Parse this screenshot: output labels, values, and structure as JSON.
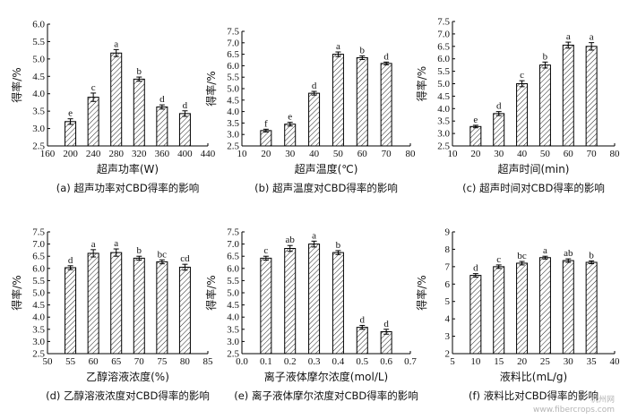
{
  "chart_data": [
    {
      "type": "bar",
      "panel_label": "(a) 超声功率对CBD得率的影响",
      "xlabel": "超声功率(W)",
      "ylabel": "得率/%",
      "x": [
        200,
        240,
        280,
        320,
        360,
        400
      ],
      "values": [
        3.2,
        3.9,
        5.17,
        4.42,
        3.62,
        3.43
      ],
      "errors": [
        0.08,
        0.12,
        0.1,
        0.06,
        0.06,
        0.08
      ],
      "letters": [
        "e",
        "c",
        "a",
        "b",
        "d",
        "d"
      ],
      "xlim": [
        160,
        440
      ],
      "ylim": [
        2.5,
        6.0
      ],
      "xticks": [
        160,
        200,
        240,
        280,
        320,
        360,
        400,
        440
      ],
      "yticks": [
        2.5,
        3.0,
        3.5,
        4.0,
        4.5,
        5.0,
        5.5,
        6.0
      ],
      "xtick_labels": [
        "160",
        "200",
        "240",
        "280",
        "320",
        "360",
        "400",
        "440"
      ],
      "ytick_labels": [
        "2.5",
        "3.0",
        "3.5",
        "4.0",
        "4.5",
        "5.0",
        "5.5",
        "6.0"
      ],
      "bar_width": 20
    },
    {
      "type": "bar",
      "panel_label": "(b) 超声温度对CBD得率的影响",
      "xlabel": "超声温度(℃)",
      "ylabel": "得率/%",
      "x": [
        20,
        30,
        40,
        50,
        60,
        70
      ],
      "values": [
        3.17,
        3.45,
        4.8,
        6.5,
        6.35,
        6.1
      ],
      "errors": [
        0.06,
        0.08,
        0.08,
        0.1,
        0.08,
        0.06
      ],
      "letters": [
        "f",
        "e",
        "d",
        "a",
        "b",
        "d"
      ],
      "xlim": [
        10,
        80
      ],
      "ylim": [
        2.5,
        7.5
      ],
      "xticks": [
        10,
        20,
        30,
        40,
        50,
        60,
        70,
        80
      ],
      "yticks": [
        2.5,
        3.0,
        3.5,
        4.0,
        4.5,
        5.0,
        5.5,
        6.0,
        6.5,
        7.0,
        7.5
      ],
      "xtick_labels": [
        "10",
        "20",
        "30",
        "40",
        "50",
        "60",
        "70",
        "80"
      ],
      "ytick_labels": [
        "2.5",
        "3.0",
        "3.5",
        "4.0",
        "4.5",
        "5.0",
        "5.5",
        "6.0",
        "6.5",
        "7.0",
        "7.5"
      ],
      "bar_width": 5
    },
    {
      "type": "bar",
      "panel_label": "(c) 超声时间对CBD得率的影响",
      "xlabel": "超声时间(min)",
      "ylabel": "得率/%",
      "x": [
        20,
        30,
        40,
        50,
        60,
        70
      ],
      "values": [
        3.28,
        3.8,
        5.0,
        5.75,
        6.55,
        6.5
      ],
      "errors": [
        0.05,
        0.08,
        0.12,
        0.12,
        0.12,
        0.15
      ],
      "letters": [
        "e",
        "d",
        "c",
        "b",
        "a",
        "a"
      ],
      "xlim": [
        10,
        80
      ],
      "ylim": [
        2.5,
        7.5
      ],
      "xticks": [
        10,
        20,
        30,
        40,
        50,
        60,
        70,
        80
      ],
      "yticks": [
        2.5,
        3.0,
        3.5,
        4.0,
        4.5,
        5.0,
        5.5,
        6.0,
        6.5,
        7.0,
        7.5
      ],
      "xtick_labels": [
        "10",
        "20",
        "30",
        "40",
        "50",
        "60",
        "70",
        "80"
      ],
      "ytick_labels": [
        "2.5",
        "3.0",
        "3.5",
        "4.0",
        "4.5",
        "5.0",
        "5.5",
        "6.0",
        "6.5",
        "7.0",
        "7.5"
      ],
      "bar_width": 5
    },
    {
      "type": "bar",
      "panel_label": "(d) 乙醇溶液浓度对CBD得率的影响",
      "xlabel": "乙醇溶液浓度(%)",
      "ylabel": "得率/%",
      "x": [
        55,
        60,
        65,
        70,
        75,
        80
      ],
      "values": [
        6.03,
        6.62,
        6.65,
        6.42,
        6.27,
        6.05
      ],
      "errors": [
        0.08,
        0.15,
        0.15,
        0.08,
        0.08,
        0.12
      ],
      "letters": [
        "d",
        "a",
        "a",
        "b",
        "bc",
        "cd"
      ],
      "xlim": [
        50,
        85
      ],
      "ylim": [
        2.5,
        7.5
      ],
      "xticks": [
        50,
        55,
        60,
        65,
        70,
        75,
        80,
        85
      ],
      "yticks": [
        2.5,
        3.0,
        3.5,
        4.0,
        4.5,
        5.0,
        5.5,
        6.0,
        6.5,
        7.0,
        7.5
      ],
      "xtick_labels": [
        "50",
        "55",
        "60",
        "65",
        "70",
        "75",
        "80",
        "85"
      ],
      "ytick_labels": [
        "2.5",
        "3.0",
        "3.5",
        "4.0",
        "4.5",
        "5.0",
        "5.5",
        "6.0",
        "6.5",
        "7.0",
        "7.5"
      ],
      "bar_width": 2.5
    },
    {
      "type": "bar",
      "panel_label": "(e) 离子液体摩尔浓度对CBD得率的影响",
      "xlabel": "离子液体摩尔浓度(mol/L)",
      "ylabel": "得率/%",
      "x": [
        0.1,
        0.2,
        0.3,
        0.4,
        0.5,
        0.6
      ],
      "values": [
        6.42,
        6.82,
        7.0,
        6.65,
        3.58,
        3.4
      ],
      "errors": [
        0.08,
        0.12,
        0.12,
        0.08,
        0.08,
        0.1
      ],
      "letters": [
        "c",
        "ab",
        "a",
        "b",
        "d",
        "d"
      ],
      "xlim": [
        0.0,
        0.7
      ],
      "ylim": [
        2.5,
        7.5
      ],
      "xticks": [
        0.0,
        0.1,
        0.2,
        0.3,
        0.4,
        0.5,
        0.6,
        0.7
      ],
      "yticks": [
        2.5,
        3.0,
        3.5,
        4.0,
        4.5,
        5.0,
        5.5,
        6.0,
        6.5,
        7.0,
        7.5
      ],
      "xtick_labels": [
        "0.0",
        "0.1",
        "0.2",
        "0.3",
        "0.4",
        "0.5",
        "0.6",
        "0.7"
      ],
      "ytick_labels": [
        "2.5",
        "3.0",
        "3.5",
        "4.0",
        "4.5",
        "5.0",
        "5.5",
        "6.0",
        "6.5",
        "7.0",
        "7.5"
      ],
      "bar_width": 0.05
    },
    {
      "type": "bar",
      "panel_label": "(f) 液料比对CBD得率的影响",
      "xlabel": "液料比(mL/g)",
      "ylabel": "得率/%",
      "x": [
        10,
        15,
        20,
        25,
        30,
        35
      ],
      "values": [
        6.5,
        7.0,
        7.2,
        7.52,
        7.35,
        7.25
      ],
      "errors": [
        0.1,
        0.1,
        0.1,
        0.08,
        0.1,
        0.08
      ],
      "letters": [
        "d",
        "c",
        "bc",
        "a",
        "ab",
        "b"
      ],
      "xlim": [
        5,
        40
      ],
      "ylim": [
        2,
        9
      ],
      "xticks": [
        5,
        10,
        15,
        20,
        25,
        30,
        35,
        40
      ],
      "yticks": [
        2,
        3,
        4,
        5,
        6,
        7,
        8,
        9
      ],
      "xtick_labels": [
        "5",
        "10",
        "15",
        "20",
        "25",
        "30",
        "35",
        "40"
      ],
      "ytick_labels": [
        "2",
        "3",
        "4",
        "5",
        "6",
        "7",
        "8",
        "9"
      ],
      "bar_width": 2.5
    }
  ],
  "watermark": {
    "line1": "杭州网",
    "line2": "www.fibercrops.com"
  }
}
